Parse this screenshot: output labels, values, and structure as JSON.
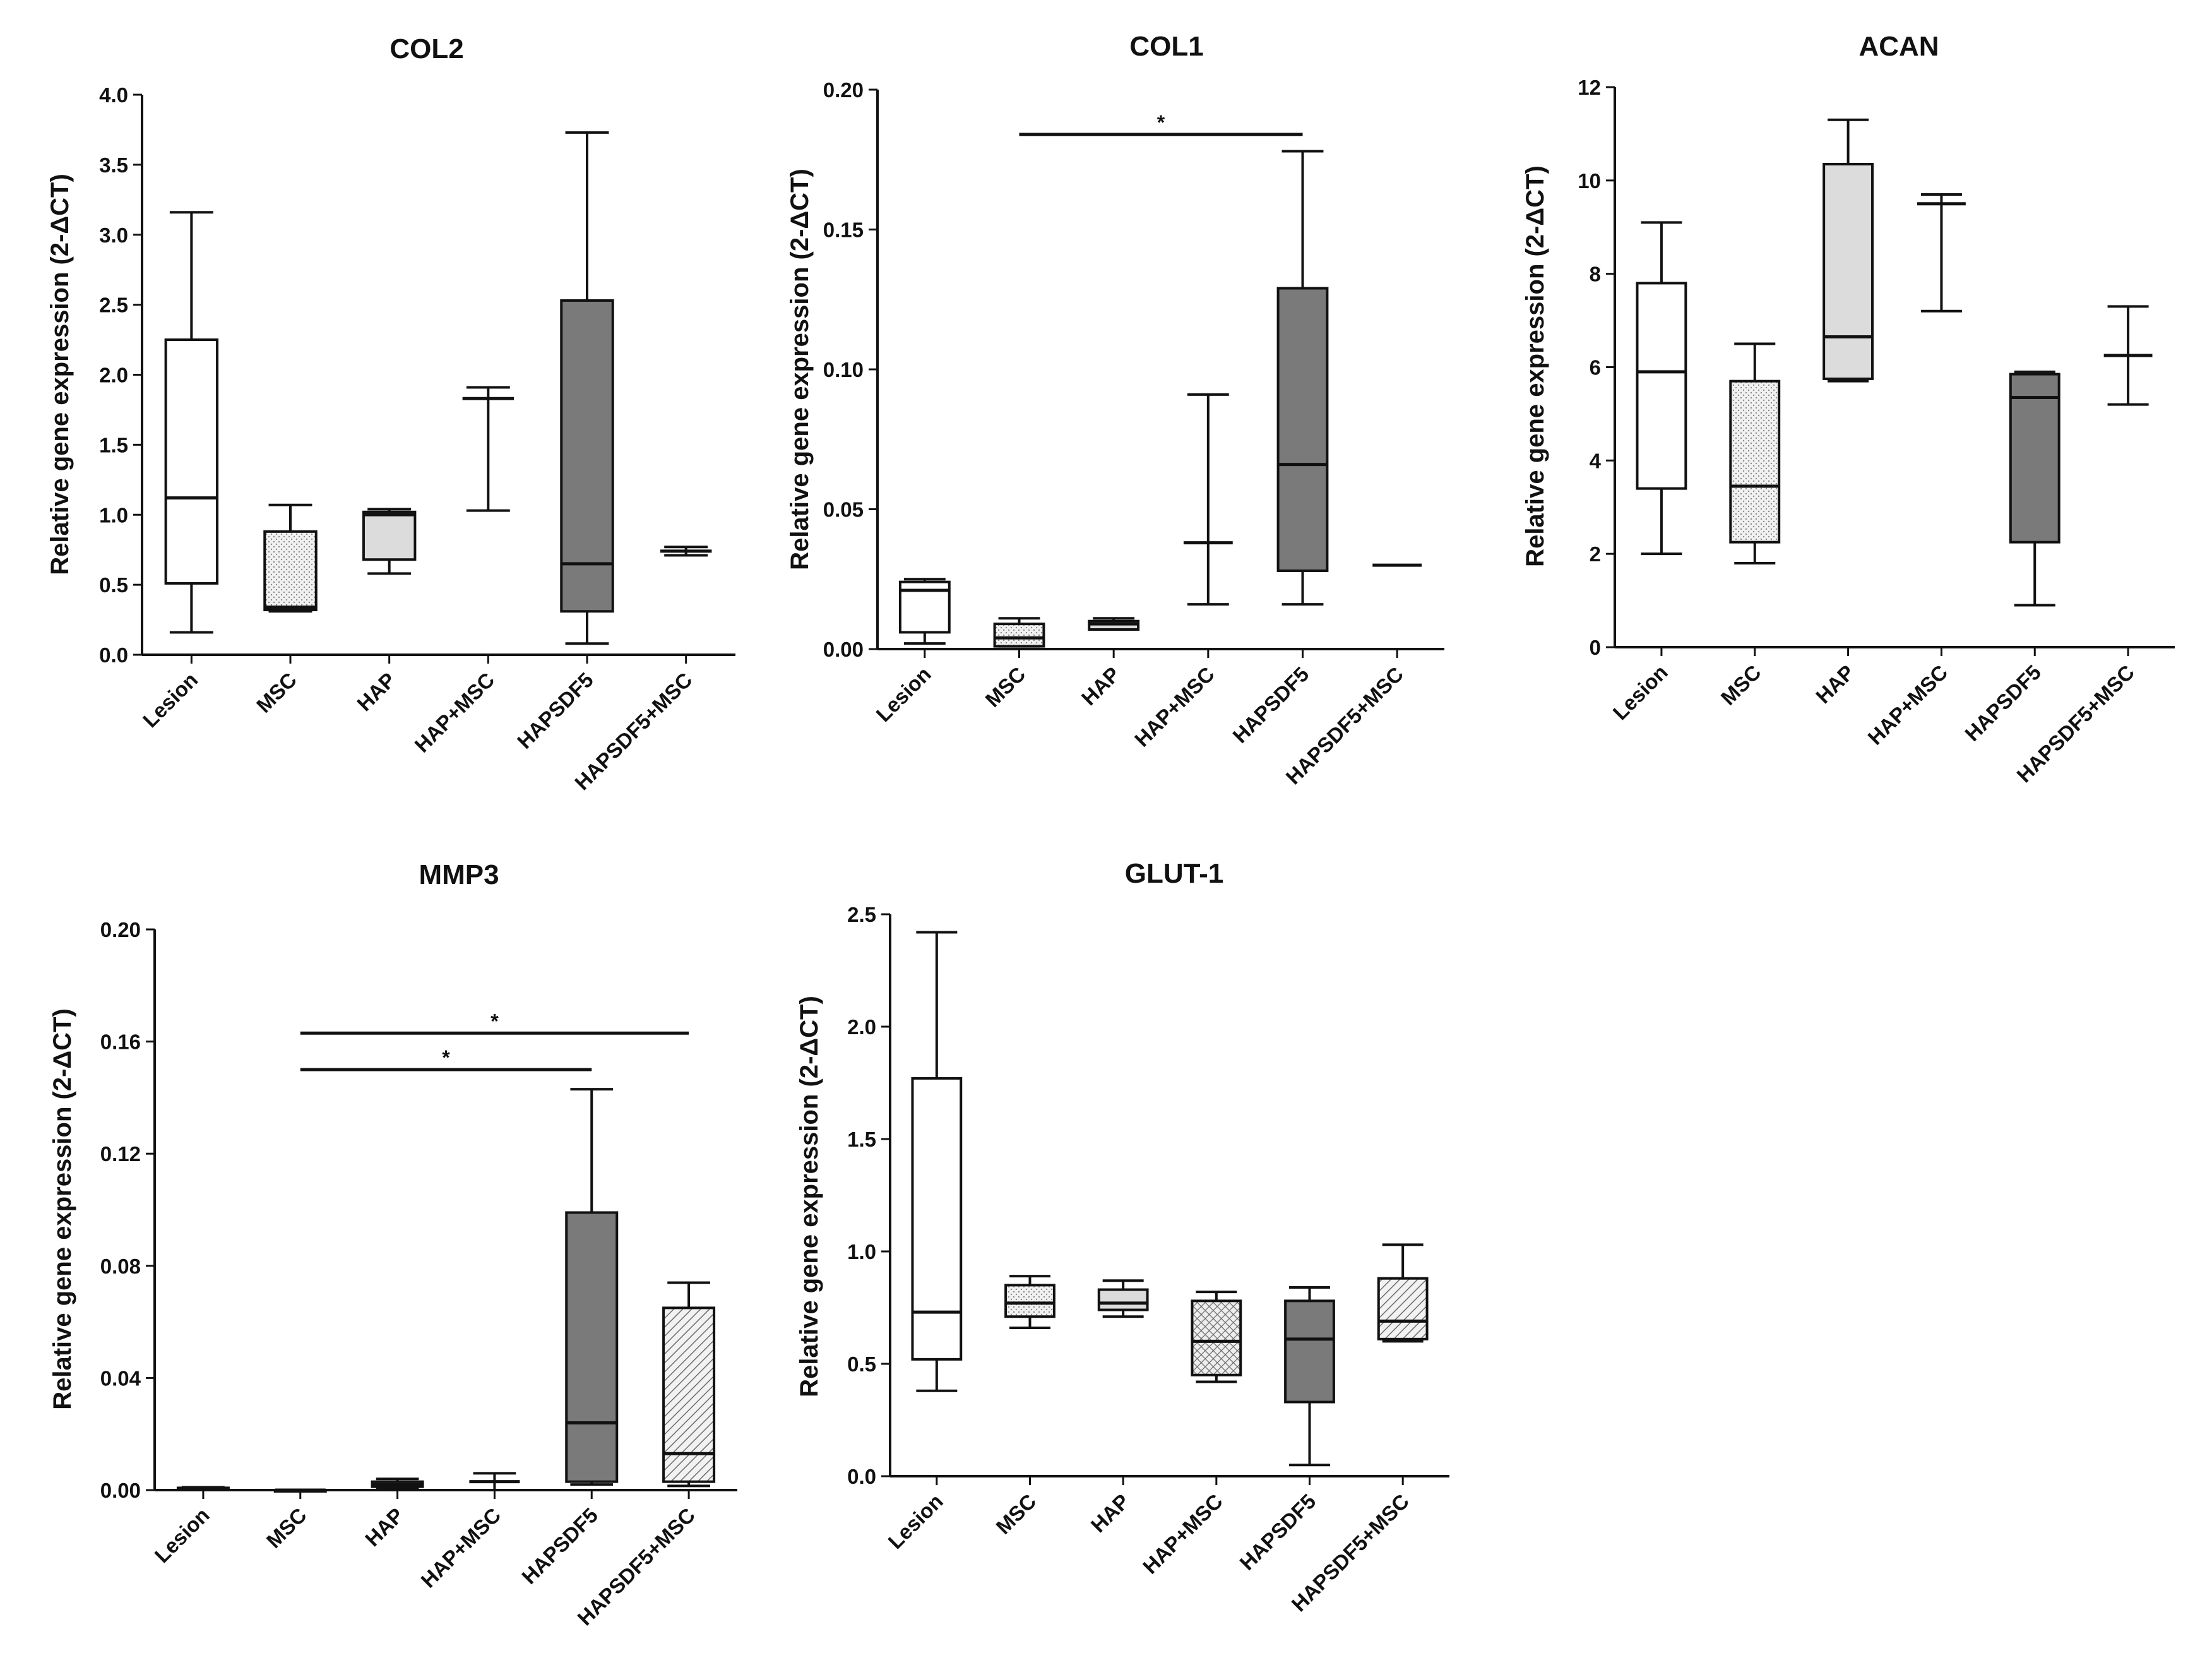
{
  "chart_data": [
    {
      "type": "boxplot",
      "title": "COL2",
      "ylabel": "Relative gene expression (2-ΔCT)",
      "ylim": [
        0,
        4.0
      ],
      "yticks": [
        0.0,
        0.5,
        1.0,
        1.5,
        2.0,
        2.5,
        3.0,
        3.5,
        4.0
      ],
      "ytick_labels": [
        "0.0",
        "0.5",
        "1.0",
        "1.5",
        "2.0",
        "2.5",
        "3.0",
        "3.5",
        "4.0"
      ],
      "categories": [
        "Lesion",
        "MSC",
        "HAP",
        "HAP+MSC",
        "HAPSDF5",
        "HAPSDF5+MSC"
      ],
      "boxes": [
        {
          "group": "Lesion",
          "min": 0.16,
          "q1": 0.51,
          "median": 1.12,
          "q3": 2.25,
          "max": 3.16,
          "fill": "white"
        },
        {
          "group": "MSC",
          "min": 0.31,
          "q1": 0.32,
          "median": 0.34,
          "q3": 0.88,
          "max": 1.07,
          "fill": "dotted"
        },
        {
          "group": "HAP",
          "min": 0.58,
          "q1": 0.68,
          "median": 1.0,
          "q3": 1.02,
          "max": 1.04,
          "fill": "lightgray"
        },
        {
          "group": "HAP+MSC",
          "min": 1.03,
          "q1": 1.83,
          "median": 1.83,
          "q3": 1.83,
          "max": 1.91,
          "fill": "none"
        },
        {
          "group": "HAPSDF5",
          "min": 0.08,
          "q1": 0.31,
          "median": 0.65,
          "q3": 2.53,
          "max": 3.73,
          "fill": "darkgray"
        },
        {
          "group": "HAPSDF5+MSC",
          "min": 0.71,
          "q1": 0.73,
          "median": 0.74,
          "q3": 0.75,
          "max": 0.77,
          "fill": "none"
        }
      ],
      "significance": []
    },
    {
      "type": "boxplot",
      "title": "COL1",
      "ylabel": "Relative gene expression (2-ΔCT)",
      "ylim": [
        0,
        0.2
      ],
      "yticks": [
        0.0,
        0.05,
        0.1,
        0.15,
        0.2
      ],
      "ytick_labels": [
        "0.00",
        "0.05",
        "0.10",
        "0.15",
        "0.20"
      ],
      "categories": [
        "Lesion",
        "MSC",
        "HAP",
        "HAP+MSC",
        "HAPSDF5",
        "HAPSDF5+MSC"
      ],
      "boxes": [
        {
          "group": "Lesion",
          "min": 0.002,
          "q1": 0.006,
          "median": 0.021,
          "q3": 0.024,
          "max": 0.025,
          "fill": "white"
        },
        {
          "group": "MSC",
          "min": 0.001,
          "q1": 0.001,
          "median": 0.004,
          "q3": 0.009,
          "max": 0.011,
          "fill": "dotted"
        },
        {
          "group": "HAP",
          "min": 0.007,
          "q1": 0.007,
          "median": 0.009,
          "q3": 0.01,
          "max": 0.011,
          "fill": "lightgray"
        },
        {
          "group": "HAP+MSC",
          "min": 0.016,
          "q1": 0.038,
          "median": 0.038,
          "q3": 0.038,
          "max": 0.091,
          "fill": "none"
        },
        {
          "group": "HAPSDF5",
          "min": 0.016,
          "q1": 0.028,
          "median": 0.066,
          "q3": 0.129,
          "max": 0.178,
          "fill": "darkgray"
        },
        {
          "group": "HAPSDF5+MSC",
          "min": 0.03,
          "q1": 0.03,
          "median": 0.03,
          "q3": 0.03,
          "max": 0.03,
          "fill": "none"
        }
      ],
      "significance": [
        {
          "from": "MSC",
          "to": "HAPSDF5",
          "label": "*",
          "y": 0.184
        }
      ]
    },
    {
      "type": "boxplot",
      "title": "ACAN",
      "ylabel": "Relative gene expression (2-ΔCT)",
      "ylim": [
        0,
        12
      ],
      "yticks": [
        0,
        2,
        4,
        6,
        8,
        10,
        12
      ],
      "ytick_labels": [
        "0",
        "2",
        "4",
        "6",
        "8",
        "10",
        "12"
      ],
      "categories": [
        "Lesion",
        "MSC",
        "HAP",
        "HAP+MSC",
        "HAPSDF5",
        "HAPSDF5+MSC"
      ],
      "boxes": [
        {
          "group": "Lesion",
          "min": 2.0,
          "q1": 3.4,
          "median": 5.9,
          "q3": 7.8,
          "max": 9.1,
          "fill": "white"
        },
        {
          "group": "MSC",
          "min": 1.8,
          "q1": 2.25,
          "median": 3.45,
          "q3": 5.7,
          "max": 6.5,
          "fill": "dotted"
        },
        {
          "group": "HAP",
          "min": 5.7,
          "q1": 5.75,
          "median": 6.65,
          "q3": 10.35,
          "max": 11.3,
          "fill": "lightgray"
        },
        {
          "group": "HAP+MSC",
          "min": 7.2,
          "q1": 9.5,
          "median": 9.5,
          "q3": 9.5,
          "max": 9.7,
          "fill": "none"
        },
        {
          "group": "HAPSDF5",
          "min": 0.9,
          "q1": 2.25,
          "median": 5.35,
          "q3": 5.85,
          "max": 5.9,
          "fill": "darkgray"
        },
        {
          "group": "HAPSDF5+MSC",
          "min": 5.2,
          "q1": 6.25,
          "median": 6.25,
          "q3": 6.25,
          "max": 7.3,
          "fill": "none"
        }
      ],
      "significance": []
    },
    {
      "type": "boxplot",
      "title": "MMP3",
      "ylabel": "Relative gene expression (2-ΔCT)",
      "ylim": [
        0,
        0.2
      ],
      "yticks": [
        0.0,
        0.04,
        0.08,
        0.12,
        0.16,
        0.2
      ],
      "ytick_labels": [
        "0.00",
        "0.04",
        "0.08",
        "0.12",
        "0.16",
        "0.20"
      ],
      "categories": [
        "Lesion",
        "MSC",
        "HAP",
        "HAP+MSC",
        "HAPSDF5",
        "HAPSDF5+MSC"
      ],
      "boxes": [
        {
          "group": "Lesion",
          "min": 0.0002,
          "q1": 0.0004,
          "median": 0.0006,
          "q3": 0.0008,
          "max": 0.001,
          "fill": "white"
        },
        {
          "group": "MSC",
          "min": 0.0,
          "q1": 0.0,
          "median": 0.0,
          "q3": 0.0,
          "max": 0.0,
          "fill": "dotted"
        },
        {
          "group": "HAP",
          "min": 0.0005,
          "q1": 0.0012,
          "median": 0.002,
          "q3": 0.003,
          "max": 0.004,
          "fill": "lightgray"
        },
        {
          "group": "HAP+MSC",
          "min": 0.0,
          "q1": 0.003,
          "median": 0.003,
          "q3": 0.003,
          "max": 0.006,
          "fill": "none"
        },
        {
          "group": "HAPSDF5",
          "min": 0.002,
          "q1": 0.003,
          "median": 0.024,
          "q3": 0.099,
          "max": 0.143,
          "fill": "darkgray"
        },
        {
          "group": "HAPSDF5+MSC",
          "min": 0.0015,
          "q1": 0.003,
          "median": 0.013,
          "q3": 0.065,
          "max": 0.074,
          "fill": "hatched"
        }
      ],
      "significance": [
        {
          "from": "MSC",
          "to": "HAPSDF5",
          "label": "*",
          "y": 0.15
        },
        {
          "from": "MSC",
          "to": "HAPSDF5+MSC",
          "label": "*",
          "y": 0.163
        }
      ]
    },
    {
      "type": "boxplot",
      "title": "GLUT-1",
      "ylabel": "Relative gene expression (2-ΔCT)",
      "ylim": [
        0,
        2.5
      ],
      "yticks": [
        0.0,
        0.5,
        1.0,
        1.5,
        2.0,
        2.5
      ],
      "ytick_labels": [
        "0.0",
        "0.5",
        "1.0",
        "1.5",
        "2.0",
        "2.5"
      ],
      "categories": [
        "Lesion",
        "MSC",
        "HAP",
        "HAP+MSC",
        "HAPSDF5",
        "HAPSDF5+MSC"
      ],
      "boxes": [
        {
          "group": "Lesion",
          "min": 0.38,
          "q1": 0.52,
          "median": 0.73,
          "q3": 1.77,
          "max": 2.42,
          "fill": "white"
        },
        {
          "group": "MSC",
          "min": 0.66,
          "q1": 0.71,
          "median": 0.77,
          "q3": 0.85,
          "max": 0.89,
          "fill": "dotted"
        },
        {
          "group": "HAP",
          "min": 0.71,
          "q1": 0.74,
          "median": 0.77,
          "q3": 0.83,
          "max": 0.87,
          "fill": "lightgray"
        },
        {
          "group": "HAP+MSC",
          "min": 0.42,
          "q1": 0.45,
          "median": 0.6,
          "q3": 0.78,
          "max": 0.82,
          "fill": "crosshatch"
        },
        {
          "group": "HAPSDF5",
          "min": 0.05,
          "q1": 0.33,
          "median": 0.61,
          "q3": 0.78,
          "max": 0.84,
          "fill": "darkgray"
        },
        {
          "group": "HAPSDF5+MSC",
          "min": 0.6,
          "q1": 0.61,
          "median": 0.69,
          "q3": 0.88,
          "max": 1.03,
          "fill": "hatched"
        }
      ],
      "significance": []
    }
  ],
  "colors": {
    "axis": "#111111",
    "white": "#ffffff",
    "lightgray": "#dcdcdc",
    "darkgray": "#7a7a7a",
    "dotted_bg": "#f1f1f1",
    "dotted_dot": "#8c8c8c",
    "hatched_bg": "#f2f2f2",
    "hatch_line": "#6b6b6b"
  }
}
